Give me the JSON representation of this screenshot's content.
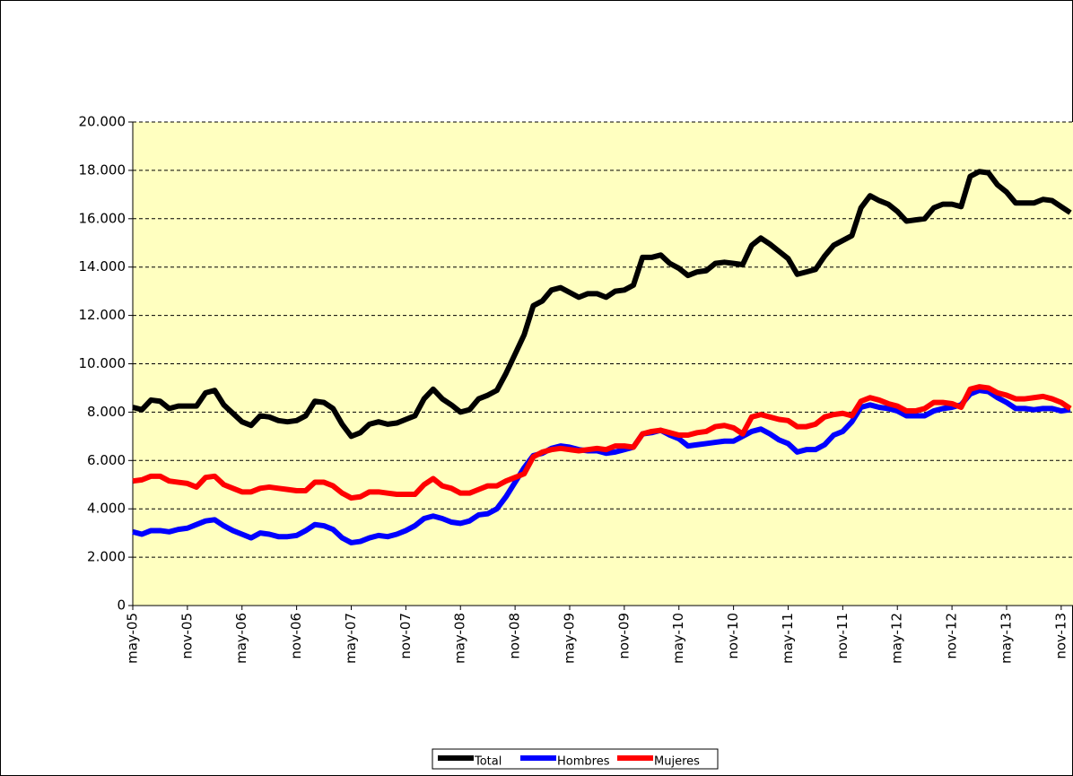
{
  "chart_data": {
    "type": "line",
    "categories": [
      "may-05",
      null,
      null,
      null,
      null,
      null,
      "nov-05",
      null,
      null,
      null,
      null,
      null,
      "may-06",
      null,
      null,
      null,
      null,
      null,
      "nov-06",
      null,
      null,
      null,
      null,
      null,
      "may-07",
      null,
      null,
      null,
      null,
      null,
      "nov-07",
      null,
      null,
      null,
      null,
      null,
      "may-08",
      null,
      null,
      null,
      null,
      null,
      "nov-08",
      null,
      null,
      null,
      null,
      null,
      "may-09",
      null,
      null,
      null,
      null,
      null,
      "nov-09",
      null,
      null,
      null,
      null,
      null,
      "may-10",
      null,
      null,
      null,
      null,
      null,
      "nov-10",
      null,
      null,
      null,
      null,
      null,
      "may-11",
      null,
      null,
      null,
      null,
      null,
      "nov-11",
      null,
      null,
      null,
      null,
      null,
      "may-12",
      null,
      null,
      null,
      null,
      null,
      "nov-12",
      null,
      null,
      null,
      null,
      null,
      "may-13",
      null,
      null,
      null,
      null,
      null,
      "nov-13",
      null
    ],
    "series": [
      {
        "name": "Total",
        "color": "#000000",
        "values": [
          8200,
          8100,
          8500,
          8450,
          8150,
          8250,
          8250,
          8250,
          8800,
          8900,
          8300,
          7950,
          7600,
          7450,
          7850,
          7800,
          7650,
          7600,
          7650,
          7850,
          8450,
          8400,
          8150,
          7500,
          7000,
          7150,
          7500,
          7600,
          7500,
          7550,
          7700,
          7850,
          8550,
          8950,
          8550,
          8300,
          8000,
          8100,
          8550,
          8700,
          8900,
          9600,
          10400,
          11200,
          12400,
          12600,
          13050,
          13150,
          12950,
          12750,
          12900,
          12900,
          12750,
          13000,
          13050,
          13250,
          14400,
          14400,
          14500,
          14150,
          13950,
          13650,
          13800,
          13850,
          14150,
          14200,
          14150,
          14100,
          14900,
          15200,
          14950,
          14650,
          14350,
          13700,
          13800,
          13900,
          14450,
          14900,
          15100,
          15300,
          16450,
          16950,
          16750,
          16600,
          16300,
          15900,
          15950,
          16000,
          16450,
          16600,
          16600,
          16500,
          17750,
          17950,
          17900,
          17400,
          17100,
          16650,
          16650,
          16650,
          16800,
          16750,
          16500,
          16250
        ]
      },
      {
        "name": "Hombres",
        "color": "#0000ff",
        "values": [
          3050,
          2950,
          3100,
          3100,
          3050,
          3150,
          3200,
          3350,
          3500,
          3550,
          3300,
          3100,
          2950,
          2800,
          3000,
          2950,
          2850,
          2850,
          2900,
          3100,
          3350,
          3300,
          3150,
          2800,
          2600,
          2650,
          2800,
          2900,
          2850,
          2950,
          3100,
          3300,
          3600,
          3700,
          3600,
          3450,
          3400,
          3500,
          3750,
          3800,
          4000,
          4500,
          5100,
          5700,
          6200,
          6300,
          6500,
          6600,
          6550,
          6450,
          6400,
          6400,
          6300,
          6350,
          6450,
          6550,
          7100,
          7150,
          7250,
          7050,
          6900,
          6600,
          6650,
          6700,
          6750,
          6800,
          6800,
          7000,
          7200,
          7300,
          7100,
          6850,
          6700,
          6350,
          6450,
          6450,
          6650,
          7050,
          7200,
          7600,
          8200,
          8300,
          8200,
          8150,
          8050,
          7850,
          7850,
          7850,
          8050,
          8150,
          8200,
          8300,
          8750,
          8900,
          8850,
          8600,
          8400,
          8150,
          8150,
          8100,
          8150,
          8150,
          8050,
          8100
        ]
      },
      {
        "name": "Mujeres",
        "color": "#ff0000",
        "values": [
          5150,
          5200,
          5350,
          5350,
          5150,
          5100,
          5050,
          4900,
          5300,
          5350,
          5000,
          4850,
          4700,
          4700,
          4850,
          4900,
          4850,
          4800,
          4750,
          4750,
          5100,
          5100,
          4950,
          4650,
          4450,
          4500,
          4700,
          4700,
          4650,
          4600,
          4600,
          4600,
          5000,
          5250,
          4950,
          4850,
          4650,
          4650,
          4800,
          4950,
          4950,
          5150,
          5300,
          5450,
          6150,
          6350,
          6450,
          6500,
          6450,
          6400,
          6450,
          6500,
          6450,
          6600,
          6600,
          6550,
          7100,
          7200,
          7250,
          7150,
          7050,
          7050,
          7150,
          7200,
          7400,
          7450,
          7350,
          7100,
          7800,
          7900,
          7800,
          7700,
          7650,
          7400,
          7400,
          7500,
          7800,
          7900,
          7950,
          7850,
          8450,
          8600,
          8500,
          8350,
          8250,
          8050,
          8050,
          8150,
          8400,
          8400,
          8350,
          8200,
          8950,
          9050,
          9000,
          8800,
          8700,
          8550,
          8550,
          8600,
          8650,
          8550,
          8400,
          8150
        ]
      }
    ],
    "ylim": [
      0,
      20000
    ],
    "yticks": [
      0,
      {
        "value": 2000,
        "label": "2.000"
      },
      {
        "value": 4000,
        "label": "4.000"
      },
      {
        "value": 6000,
        "label": "6.000"
      },
      {
        "value": 8000,
        "label": "8.000"
      },
      {
        "value": 10000,
        "label": "10.000"
      },
      {
        "value": 12000,
        "label": "12.000"
      },
      {
        "value": 14000,
        "label": "14.000"
      },
      {
        "value": 16000,
        "label": "16.000"
      },
      {
        "value": 18000,
        "label": "18.000"
      },
      {
        "value": 20000,
        "label": "20.000"
      }
    ],
    "grid": true,
    "legend": "bottom"
  }
}
